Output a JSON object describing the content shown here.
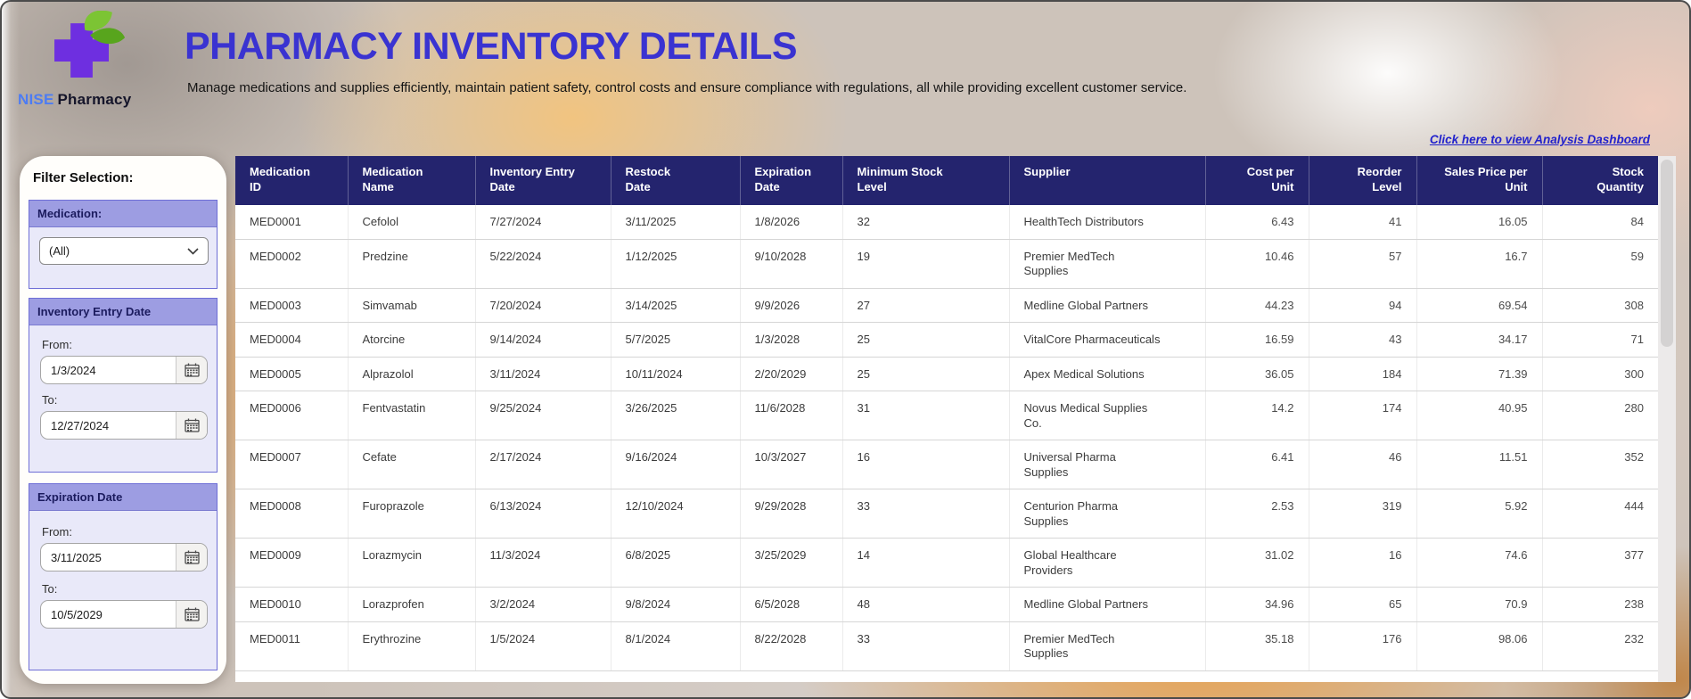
{
  "header": {
    "brand": {
      "name_primary": "NISE",
      "name_secondary": "Pharmacy"
    },
    "title": "PHARMACY INVENTORY DETAILS",
    "subtitle": "Manage medications and supplies efficiently, maintain patient safety, control costs and ensure compliance with regulations, all while providing excellent customer service.",
    "analysis_link": "Click here to view Analysis Dashboard"
  },
  "filter_panel": {
    "title": "Filter Selection:",
    "medication": {
      "label": "Medication:",
      "selected_value": "(All)"
    },
    "inventory_entry_date": {
      "label": "Inventory Entry Date",
      "from_label": "From:",
      "from_value": "1/3/2024",
      "to_label": "To:",
      "to_value": "12/27/2024"
    },
    "expiration_date": {
      "label": "Expiration Date",
      "from_label": "From:",
      "from_value": "3/11/2025",
      "to_label": "To:",
      "to_value": "10/5/2029"
    }
  },
  "table": {
    "columns": [
      "Medication\nID",
      "Medication\nName",
      "Inventory Entry\nDate",
      "Restock\nDate",
      "Expiration\nDate",
      "Minimum Stock\nLevel",
      "Supplier",
      "Cost per\nUnit",
      "Reorder\nLevel",
      "Sales Price per\nUnit",
      "Stock\nQuantity"
    ],
    "rows": [
      {
        "id": "MED0001",
        "name": "Cefolol",
        "entry_date": "7/27/2024",
        "restock_date": "3/11/2025",
        "expiration_date": "1/8/2026",
        "min_stock": "32",
        "supplier": "HealthTech Distributors",
        "cost_per_unit": "6.43",
        "reorder_level": "41",
        "sales_price": "16.05",
        "stock_qty": "84"
      },
      {
        "id": "MED0002",
        "name": "Predzine",
        "entry_date": "5/22/2024",
        "restock_date": "1/12/2025",
        "expiration_date": "9/10/2028",
        "min_stock": "19",
        "supplier": "Premier MedTech\nSupplies",
        "cost_per_unit": "10.46",
        "reorder_level": "57",
        "sales_price": "16.7",
        "stock_qty": "59"
      },
      {
        "id": "MED0003",
        "name": "Simvamab",
        "entry_date": "7/20/2024",
        "restock_date": "3/14/2025",
        "expiration_date": "9/9/2026",
        "min_stock": "27",
        "supplier": "Medline Global Partners",
        "cost_per_unit": "44.23",
        "reorder_level": "94",
        "sales_price": "69.54",
        "stock_qty": "308"
      },
      {
        "id": "MED0004",
        "name": "Atorcine",
        "entry_date": "9/14/2024",
        "restock_date": "5/7/2025",
        "expiration_date": "1/3/2028",
        "min_stock": "25",
        "supplier": "VitalCore Pharmaceuticals",
        "cost_per_unit": "16.59",
        "reorder_level": "43",
        "sales_price": "34.17",
        "stock_qty": "71"
      },
      {
        "id": "MED0005",
        "name": "Alprazolol",
        "entry_date": "3/11/2024",
        "restock_date": "10/11/2024",
        "expiration_date": "2/20/2029",
        "min_stock": "25",
        "supplier": "Apex Medical Solutions",
        "cost_per_unit": "36.05",
        "reorder_level": "184",
        "sales_price": "71.39",
        "stock_qty": "300"
      },
      {
        "id": "MED0006",
        "name": "Fentvastatin",
        "entry_date": "9/25/2024",
        "restock_date": "3/26/2025",
        "expiration_date": "11/6/2028",
        "min_stock": "31",
        "supplier": "Novus Medical Supplies\nCo.",
        "cost_per_unit": "14.2",
        "reorder_level": "174",
        "sales_price": "40.95",
        "stock_qty": "280"
      },
      {
        "id": "MED0007",
        "name": "Cefate",
        "entry_date": "2/17/2024",
        "restock_date": "9/16/2024",
        "expiration_date": "10/3/2027",
        "min_stock": "16",
        "supplier": "Universal Pharma\nSupplies",
        "cost_per_unit": "6.41",
        "reorder_level": "46",
        "sales_price": "11.51",
        "stock_qty": "352"
      },
      {
        "id": "MED0008",
        "name": "Furoprazole",
        "entry_date": "6/13/2024",
        "restock_date": "12/10/2024",
        "expiration_date": "9/29/2028",
        "min_stock": "33",
        "supplier": "Centurion Pharma\nSupplies",
        "cost_per_unit": "2.53",
        "reorder_level": "319",
        "sales_price": "5.92",
        "stock_qty": "444"
      },
      {
        "id": "MED0009",
        "name": "Lorazmycin",
        "entry_date": "11/3/2024",
        "restock_date": "6/8/2025",
        "expiration_date": "3/25/2029",
        "min_stock": "14",
        "supplier": "Global Healthcare\nProviders",
        "cost_per_unit": "31.02",
        "reorder_level": "16",
        "sales_price": "74.6",
        "stock_qty": "377"
      },
      {
        "id": "MED0010",
        "name": "Lorazprofen",
        "entry_date": "3/2/2024",
        "restock_date": "9/8/2024",
        "expiration_date": "6/5/2028",
        "min_stock": "48",
        "supplier": "Medline Global Partners",
        "cost_per_unit": "34.96",
        "reorder_level": "65",
        "sales_price": "70.9",
        "stock_qty": "238"
      },
      {
        "id": "MED0011",
        "name": "Erythrozine",
        "entry_date": "1/5/2024",
        "restock_date": "8/1/2024",
        "expiration_date": "8/22/2028",
        "min_stock": "33",
        "supplier": "Premier MedTech\nSupplies",
        "cost_per_unit": "35.18",
        "reorder_level": "176",
        "sales_price": "98.06",
        "stock_qty": "232"
      }
    ]
  },
  "colors": {
    "table_header_bg": "#24246e",
    "filter_header_bg": "#9d9de2",
    "title_blue": "#3a33d1",
    "link_blue": "#2222cc",
    "brand_blue": "#4d7cf3",
    "logo_purple": "#6e2fe0",
    "leaf_green": "#74c02e"
  }
}
